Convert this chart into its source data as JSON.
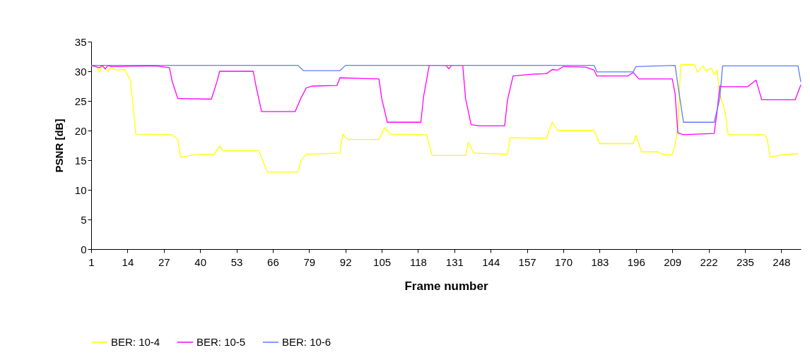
{
  "chart_data": {
    "type": "line",
    "xlabel": "Frame number",
    "ylabel": "PSNR [dB]",
    "xlim": [
      1,
      255
    ],
    "xticks": [
      1,
      14,
      27,
      40,
      53,
      66,
      79,
      92,
      105,
      118,
      131,
      144,
      157,
      170,
      183,
      196,
      209,
      222,
      235,
      248
    ],
    "ylim": [
      0,
      35
    ],
    "yticks": [
      0,
      5,
      10,
      15,
      20,
      25,
      30,
      35
    ],
    "grid": false,
    "legend": "bottom",
    "marker": "none",
    "line_style": "solid",
    "series": [
      {
        "name": "BER: 10-4",
        "color": "#ffff00",
        "x": [
          1,
          3,
          4,
          5,
          7,
          8,
          10,
          13,
          15,
          16,
          17,
          30,
          32,
          33,
          39,
          45,
          47,
          48,
          61,
          64,
          75,
          76,
          78,
          90,
          91,
          93,
          104,
          106,
          108,
          121,
          123,
          135,
          136,
          138,
          150,
          151,
          164,
          166,
          168,
          181,
          183,
          195,
          196,
          198,
          204,
          206,
          209,
          210,
          211,
          212,
          217,
          218,
          220,
          221,
          223,
          224,
          225,
          226,
          228,
          229,
          242,
          243,
          244,
          248,
          254
        ],
        "values": [
          31,
          30.8,
          29.8,
          30.9,
          30,
          30.6,
          30.2,
          30.3,
          28.5,
          24.2,
          19.4,
          19.3,
          18.5,
          15.5,
          16,
          16,
          17.4,
          16.6,
          16.6,
          13,
          13,
          14.9,
          16,
          16.2,
          19.4,
          18.5,
          18.5,
          20.5,
          19.4,
          19.3,
          15.8,
          15.8,
          18,
          16.2,
          16,
          18.8,
          18.7,
          21.4,
          20,
          20,
          17.8,
          17.8,
          19.2,
          16.4,
          16.4,
          15.9,
          15.9,
          17.7,
          20.7,
          31.1,
          31.1,
          29.8,
          30.9,
          30.1,
          30.5,
          29.4,
          30.2,
          26.2,
          23,
          19.3,
          19.3,
          18.5,
          15.5,
          15.9,
          16.1
        ]
      },
      {
        "name": "BER: 10-5",
        "color": "#ff00ff",
        "x": [
          1,
          4,
          5,
          6,
          7,
          8,
          24,
          29,
          30,
          32,
          44,
          46,
          47,
          59,
          60,
          62,
          74,
          76,
          78,
          80,
          89,
          90,
          104,
          105,
          107,
          119,
          120,
          122,
          128,
          129,
          130,
          134,
          135,
          137,
          140,
          149,
          150,
          152,
          159,
          164,
          166,
          168,
          170,
          178,
          181,
          182,
          193,
          195,
          197,
          209,
          210,
          211,
          213,
          224,
          225,
          226,
          227,
          236,
          239,
          241,
          253,
          255
        ],
        "values": [
          31,
          30.6,
          31,
          30.4,
          31,
          30.8,
          30.9,
          30.6,
          28.3,
          25.4,
          25.3,
          28.2,
          30,
          30,
          27.5,
          23.2,
          23.2,
          25.4,
          27.2,
          27.5,
          27.6,
          28.9,
          28.7,
          25.4,
          21.4,
          21.4,
          25.8,
          31,
          31,
          30.4,
          31,
          31,
          25.4,
          21,
          20.8,
          20.8,
          25.1,
          29.2,
          29.5,
          29.6,
          30.3,
          30.2,
          30.8,
          30.7,
          30.2,
          29.2,
          29.2,
          29.8,
          28.7,
          28.7,
          26.2,
          19.6,
          19.3,
          19.5,
          23.1,
          27.5,
          27.4,
          27.4,
          28.5,
          25.2,
          25.2,
          27.7
        ]
      },
      {
        "name": "BER: 10-6",
        "color": "#5b7cff",
        "x": [
          1,
          75,
          77,
          90,
          92,
          181,
          182,
          195,
          196,
          210,
          211,
          213,
          224,
          226,
          227,
          254,
          255
        ],
        "values": [
          31,
          31,
          30.1,
          30.1,
          31,
          31,
          29.9,
          29.9,
          30.8,
          31,
          27.7,
          21.4,
          21.4,
          25.4,
          30.9,
          30.9,
          28.2
        ]
      }
    ]
  }
}
